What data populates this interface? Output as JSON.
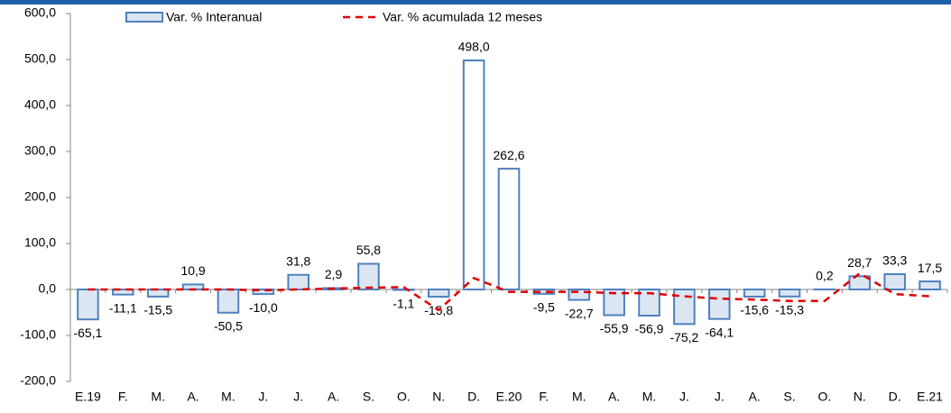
{
  "chart_data": {
    "type": "bar",
    "categories": [
      "E.19",
      "F.",
      "M.",
      "A.",
      "M.",
      "J.",
      "J.",
      "A.",
      "S.",
      "O.",
      "N.",
      "D.",
      "E.20",
      "F.",
      "M.",
      "A.",
      "M.",
      "J.",
      "J.",
      "A.",
      "S.",
      "O.",
      "N.",
      "D.",
      "E.21"
    ],
    "series": [
      {
        "name": "Var. % Interanual",
        "type": "bar",
        "color": "#4f81bd",
        "fill": "#dce6f2",
        "bar_fills": [
          "#dce6f2",
          "#dce6f2",
          "#dce6f2",
          "#dce6f2",
          "#dce6f2",
          "#dce6f2",
          "#dce6f2",
          "#dce6f2",
          "#dce6f2",
          "#dce6f2",
          "#dce6f2",
          "#ffffff",
          "#ffffff",
          "#dce6f2",
          "#dce6f2",
          "#dce6f2",
          "#dce6f2",
          "#dce6f2",
          "#dce6f2",
          "#dce6f2",
          "#dce6f2",
          "#dce6f2",
          "#dce6f2",
          "#dce6f2",
          "#dce6f2"
        ],
        "values": [
          -65.1,
          -11.1,
          -15.5,
          10.9,
          -50.5,
          -10.0,
          31.8,
          2.9,
          55.8,
          -1.1,
          -15.8,
          498.0,
          262.6,
          -9.5,
          -22.7,
          -55.9,
          -56.9,
          -75.2,
          -64.1,
          -15.6,
          -15.3,
          0.2,
          28.7,
          33.3,
          17.5
        ],
        "value_labels": [
          "-65,1",
          "-11,1",
          "-15,5",
          "10,9",
          "-50,5",
          "-10,0",
          "31,8",
          "2,9",
          "55,8",
          "-1,1",
          "-15,8",
          "498,0",
          "262,6",
          "-9,5",
          "-22,7",
          "-55,9",
          "-56,9",
          "-75,2",
          "-64,1",
          "-15,6",
          "-15,3",
          "0,2",
          "28,7",
          "33,3",
          "17,5"
        ]
      },
      {
        "name": "Var. % acumulada 12 meses",
        "type": "line",
        "color": "#e00000",
        "values": [
          0,
          0,
          0,
          0,
          0,
          -2,
          0,
          2,
          4,
          5,
          -45,
          25,
          -5,
          -5,
          -5,
          -8,
          -8,
          -15,
          -20,
          -22,
          -25,
          -25,
          35,
          -10,
          -15
        ]
      }
    ],
    "ylim": [
      -200,
      600
    ],
    "yticks": [
      {
        "value": -200,
        "label": "-200,0"
      },
      {
        "value": -100,
        "label": "-100,0"
      },
      {
        "value": 0,
        "label": "0,0"
      },
      {
        "value": 100,
        "label": "100,0"
      },
      {
        "value": 200,
        "label": "200,0"
      },
      {
        "value": 300,
        "label": "300,0"
      },
      {
        "value": 400,
        "label": "400,0"
      },
      {
        "value": 500,
        "label": "500,0"
      },
      {
        "value": 600,
        "label": "600,0"
      }
    ],
    "grid": false
  }
}
